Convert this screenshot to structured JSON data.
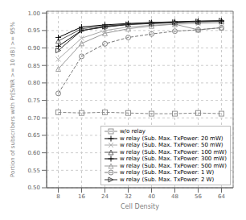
{
  "chart_data": {
    "type": "line",
    "x": [
      8,
      16,
      24,
      32,
      40,
      48,
      56,
      64
    ],
    "series": [
      {
        "name": "w/o relay",
        "color": "#888888",
        "marker": "square",
        "line_style": "dashed",
        "values": [
          0.716,
          0.714,
          0.716,
          0.714,
          0.712,
          0.712,
          0.714,
          0.712
        ]
      },
      {
        "name": "w relay (Sub. Max. TxPower: 20 mW)",
        "color": "#000000",
        "marker": "plus",
        "line_style": "solid",
        "values": [
          0.905,
          0.95,
          0.96,
          0.967,
          0.97,
          0.972,
          0.975,
          0.976
        ]
      },
      {
        "name": "w relay (Sub. Max. TxPower: 50 mW)",
        "color": "#aaaaaa",
        "marker": "x",
        "line_style": "solid",
        "values": [
          0.868,
          0.928,
          0.95,
          0.96,
          0.965,
          0.968,
          0.97,
          0.972
        ]
      },
      {
        "name": "w relay (Sub. Max. TxPower: 100 mW)",
        "color": "#555555",
        "marker": "triangle-up",
        "line_style": "solid",
        "values": [
          0.92,
          0.955,
          0.963,
          0.968,
          0.971,
          0.973,
          0.975,
          0.977
        ]
      },
      {
        "name": "w relay (Sub. Max. TxPower: 300 mW)",
        "color": "#000000",
        "marker": "plus",
        "line_style": "solid",
        "values": [
          0.93,
          0.96,
          0.966,
          0.97,
          0.973,
          0.975,
          0.977,
          0.978
        ]
      },
      {
        "name": "w relay (Sub. Max. TxPower: 500 mW)",
        "color": "#999999",
        "marker": "triangle-up",
        "line_style": "solid",
        "values": [
          0.84,
          0.913,
          0.942,
          0.955,
          0.963,
          0.968,
          0.952,
          0.958
        ]
      },
      {
        "name": "w relay (Sub. Max. TxPower: 1 W)",
        "color": "#777777",
        "marker": "circle",
        "line_style": "dashed",
        "values": [
          0.77,
          0.876,
          0.912,
          0.93,
          0.94,
          0.948,
          0.952,
          0.958
        ]
      },
      {
        "name": "w relay (Sub. Max. TxPower: 2 W)",
        "color": "#333333",
        "marker": "triangle-right",
        "line_style": "solid",
        "values": [
          0.893,
          0.95,
          0.961,
          0.968,
          0.972,
          0.974,
          0.976,
          0.978
        ]
      }
    ],
    "xlabel": "Cell Density",
    "ylabel": "Portion of subscribers with Pr[S/NR >= 10 dB] >= 95%",
    "xlim": [
      4,
      68
    ],
    "ylim": [
      0.5,
      1.005
    ],
    "xticks": [
      8,
      16,
      24,
      32,
      40,
      48,
      56,
      64
    ],
    "yticks": [
      {
        "value": 0.5,
        "label": "0.50"
      },
      0.55,
      {
        "value": 0.6,
        "label": "0.60"
      },
      0.65,
      {
        "value": 0.7,
        "label": "0.70"
      },
      0.75,
      {
        "value": 0.8,
        "label": "0.80"
      },
      0.85,
      {
        "value": 0.9,
        "label": "0.90"
      },
      0.95,
      {
        "value": 1.0,
        "label": "1.00"
      }
    ],
    "grid": true,
    "legend": "lower right"
  }
}
